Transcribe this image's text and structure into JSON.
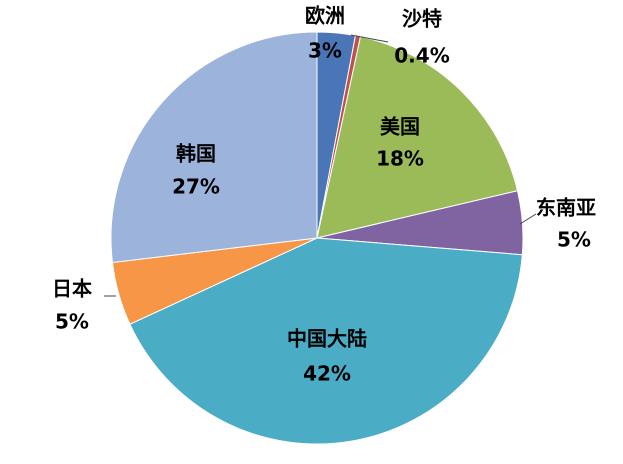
{
  "chart_data": {
    "type": "pie",
    "categories": [
      "欧洲",
      "沙特",
      "美国",
      "东南亚",
      "中国大陆",
      "日本",
      "韩国"
    ],
    "values": [
      3,
      0.4,
      18,
      5,
      42,
      5,
      27
    ],
    "value_labels": [
      "3%",
      "0.4%",
      "18%",
      "5%",
      "42%",
      "5%",
      "27%"
    ],
    "colors": [
      "#4a76b8",
      "#c0504d",
      "#9bbb59",
      "#8064a2",
      "#4bacc6",
      "#f79646",
      "#9cb3dc"
    ]
  }
}
